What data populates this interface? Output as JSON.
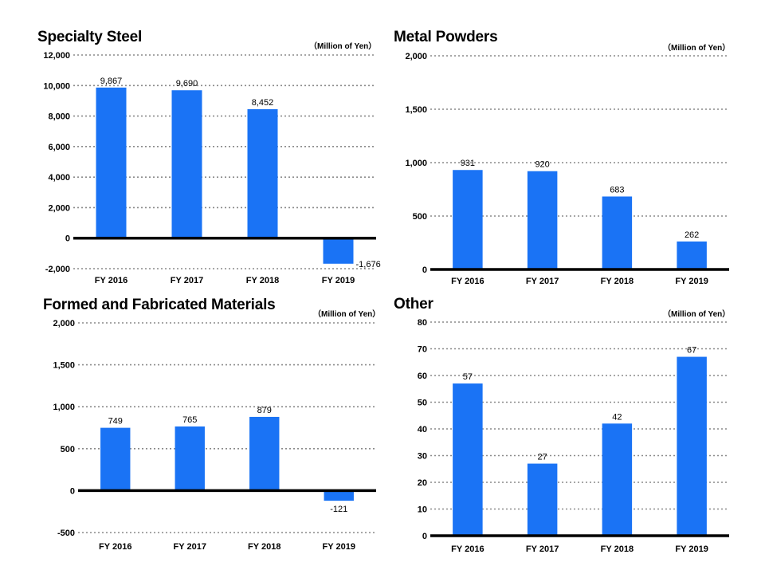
{
  "chart_data": [
    {
      "type": "bar",
      "title": "Specialty Steel",
      "unit": "（Million of Yen）",
      "categories": [
        "FY 2016",
        "FY 2017",
        "FY 2018",
        "FY 2019"
      ],
      "values": [
        9867,
        9690,
        8452,
        -1676
      ],
      "value_labels": [
        "9,867",
        "9,690",
        "8,452",
        "-1,676"
      ],
      "ylim": [
        -2000,
        12000
      ],
      "yticks": [
        -2000,
        0,
        2000,
        4000,
        6000,
        8000,
        10000,
        12000
      ],
      "ytick_labels": [
        "-2,000",
        "0",
        "2,000",
        "4,000",
        "6,000",
        "8,000",
        "10,000",
        "12,000"
      ],
      "bar_color": "#1a73f5",
      "grid": true
    },
    {
      "type": "bar",
      "title": "Metal Powders",
      "unit": "（Million of Yen）",
      "categories": [
        "FY 2016",
        "FY 2017",
        "FY 2018",
        "FY 2019"
      ],
      "values": [
        931,
        920,
        683,
        262
      ],
      "value_labels": [
        "931",
        "920",
        "683",
        "262"
      ],
      "ylim": [
        0,
        2000
      ],
      "yticks": [
        0,
        500,
        1000,
        1500,
        2000
      ],
      "ytick_labels": [
        "0",
        "500",
        "1,000",
        "1,500",
        "2,000"
      ],
      "bar_color": "#1a73f5",
      "grid": true
    },
    {
      "type": "bar",
      "title": "Formed and Fabricated Materials",
      "unit": "（Million of Yen）",
      "categories": [
        "FY 2016",
        "FY 2017",
        "FY 2018",
        "FY 2019"
      ],
      "values": [
        749,
        765,
        879,
        -121
      ],
      "value_labels": [
        "749",
        "765",
        "879",
        "-121"
      ],
      "ylim": [
        -500,
        2000
      ],
      "yticks": [
        -500,
        0,
        500,
        1000,
        1500,
        2000
      ],
      "ytick_labels": [
        "-500",
        "0",
        "500",
        "1,000",
        "1,500",
        "2,000"
      ],
      "bar_color": "#1a73f5",
      "grid": true
    },
    {
      "type": "bar",
      "title": "Other",
      "unit": "（Million of Yen）",
      "categories": [
        "FY 2016",
        "FY 2017",
        "FY 2018",
        "FY 2019"
      ],
      "values": [
        57,
        27,
        42,
        67
      ],
      "value_labels": [
        "57",
        "27",
        "42",
        "67"
      ],
      "ylim": [
        0,
        80
      ],
      "yticks": [
        0,
        10,
        20,
        30,
        40,
        50,
        60,
        70,
        80
      ],
      "ytick_labels": [
        "0",
        "10",
        "20",
        "30",
        "40",
        "50",
        "60",
        "70",
        "80"
      ],
      "bar_color": "#1a73f5",
      "grid": true
    }
  ]
}
